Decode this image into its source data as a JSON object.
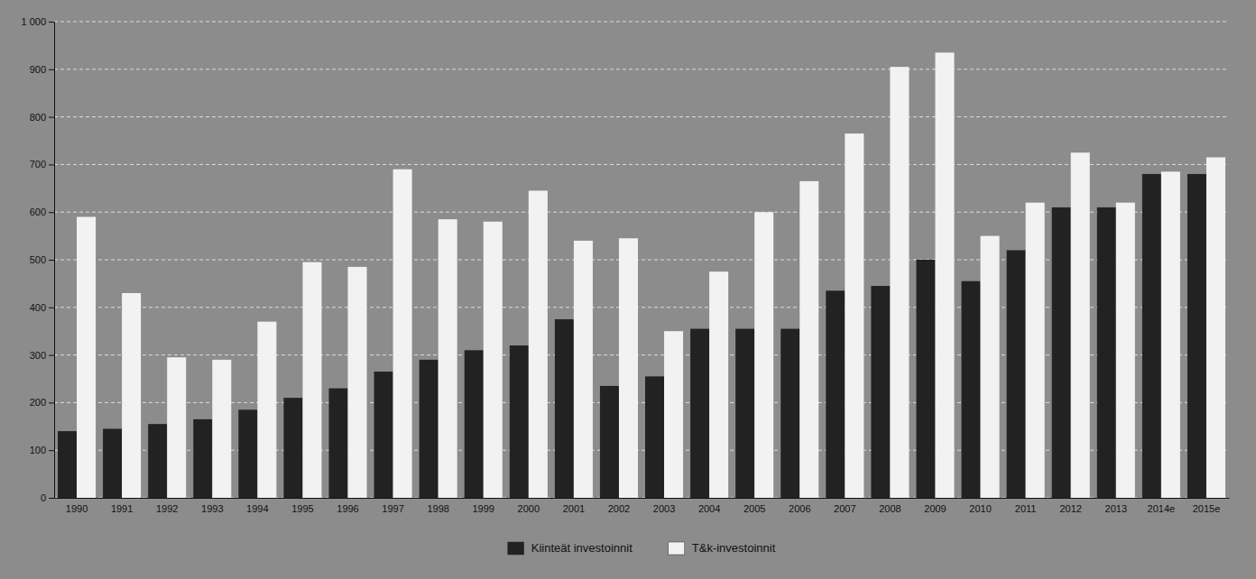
{
  "chart_data": {
    "type": "bar",
    "categories": [
      "1990",
      "1991",
      "1992",
      "1993",
      "1994",
      "1995",
      "1996",
      "1997",
      "1998",
      "1999",
      "2000",
      "2001",
      "2002",
      "2003",
      "2004",
      "2005",
      "2006",
      "2007",
      "2008",
      "2009",
      "2010",
      "2011",
      "2012",
      "2013",
      "2014e",
      "2015e"
    ],
    "series": [
      {
        "name": "Kiinteät investoinnit",
        "color": "#222222",
        "values": [
          140,
          145,
          155,
          165,
          185,
          210,
          230,
          265,
          290,
          310,
          320,
          375,
          235,
          255,
          355,
          355,
          355,
          435,
          445,
          500,
          455,
          520,
          610,
          610,
          680,
          680
        ]
      },
      {
        "name": "T&k-investoinnit",
        "color": "#f2f2f2",
        "values": [
          590,
          430,
          295,
          290,
          370,
          495,
          485,
          690,
          585,
          580,
          645,
          540,
          545,
          350,
          475,
          600,
          665,
          765,
          905,
          935,
          550,
          620,
          725,
          620,
          685,
          715
        ]
      }
    ],
    "ylim": [
      0,
      1000
    ],
    "yticks": [
      0,
      100,
      200,
      300,
      400,
      500,
      600,
      700,
      800,
      900,
      {
        "value": 1000,
        "label": "1 000"
      }
    ],
    "grid": true,
    "legend": "bottom"
  }
}
